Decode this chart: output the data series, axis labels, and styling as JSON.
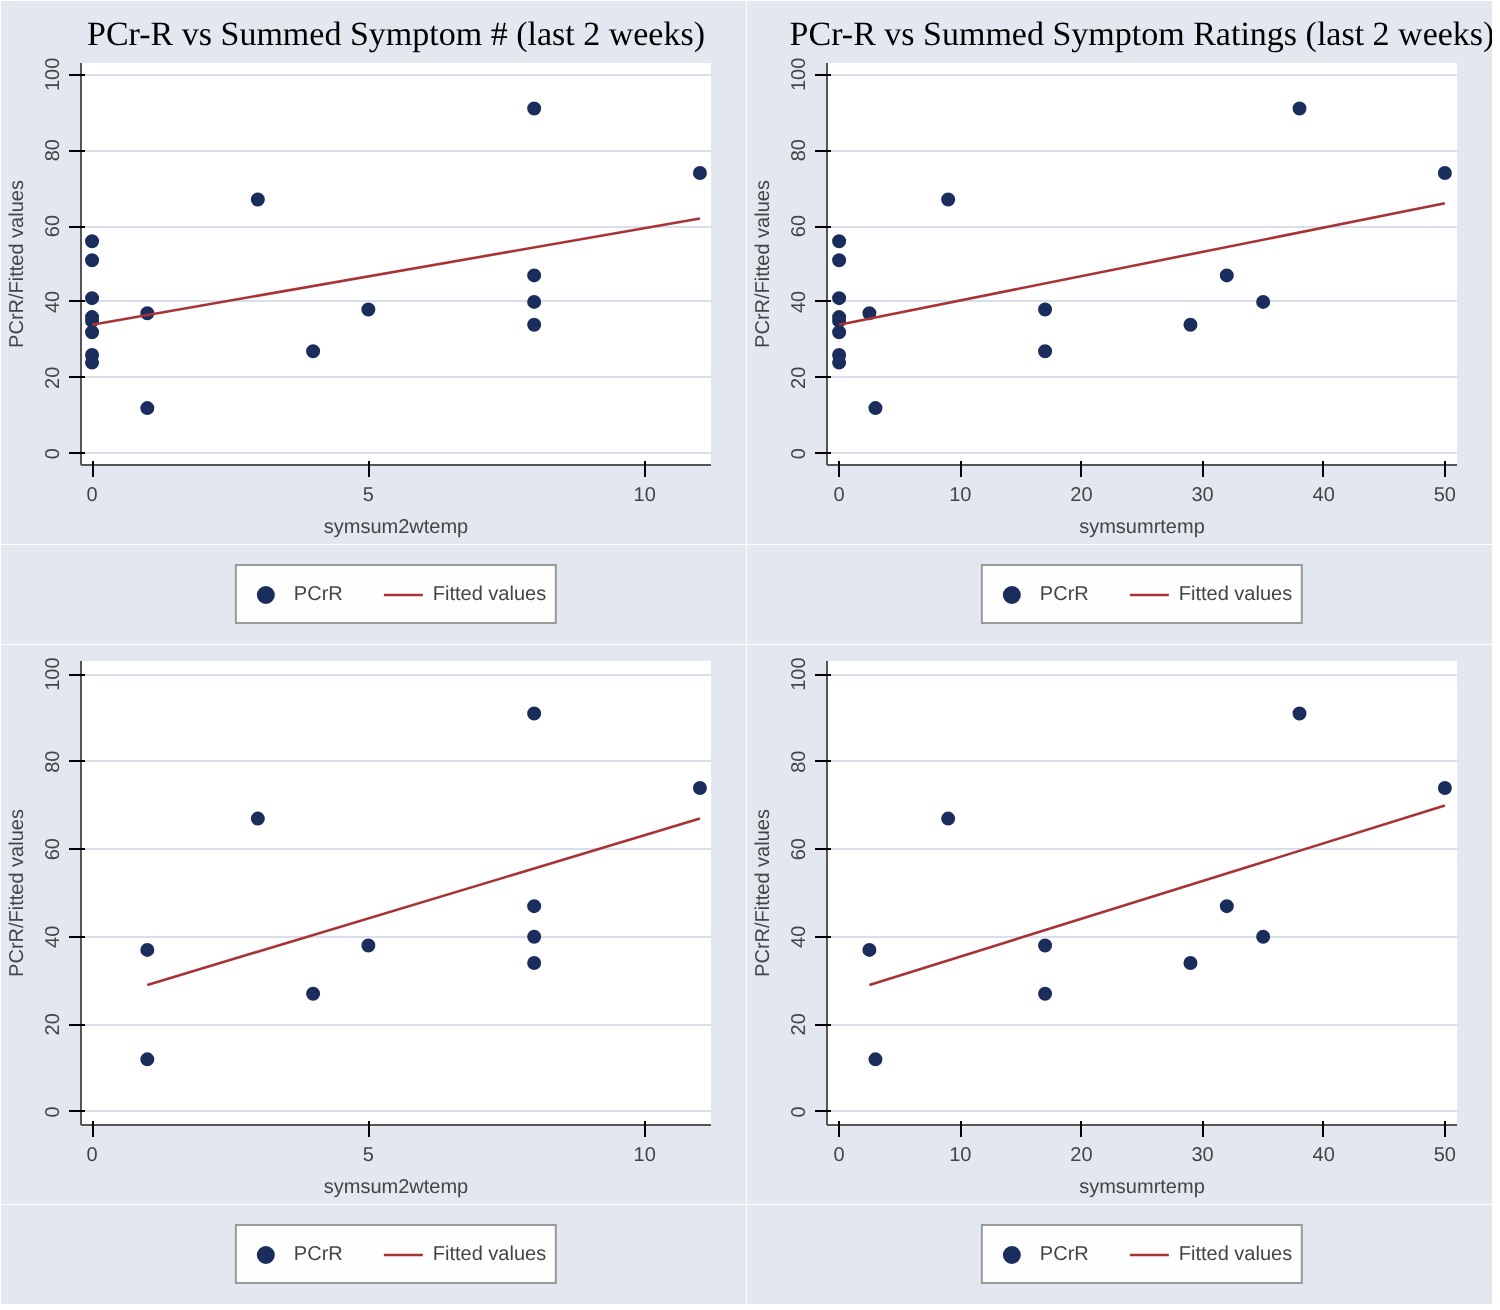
{
  "chart_data": [
    {
      "type": "scatter",
      "title": "PCr-R vs Summed Symptom # (last 2 weeks)",
      "xlabel": "symsum2wtemp",
      "ylabel": "PCrR/Fitted values",
      "xlim": [
        -0.2,
        11.2
      ],
      "ylim": [
        -3,
        103
      ],
      "xticks": [
        0,
        5,
        10
      ],
      "yticks": [
        0,
        20,
        40,
        60,
        80,
        100
      ],
      "grid": "y",
      "legend": "bottom",
      "series": [
        {
          "name": "PCrR",
          "marker": "circle",
          "color": "#1b2d5c",
          "x": [
            0,
            0,
            0,
            0,
            0,
            0,
            0,
            0,
            1,
            1,
            3,
            4,
            5,
            8,
            8,
            8,
            8,
            11
          ],
          "values": [
            56,
            51,
            41,
            36,
            35,
            32,
            26,
            24,
            37,
            12,
            67,
            27,
            38,
            91,
            47,
            40,
            34,
            74
          ]
        },
        {
          "name": "Fitted values",
          "type": "line",
          "color": "#a83236",
          "x": [
            0,
            11
          ],
          "values": [
            34,
            62
          ]
        }
      ]
    },
    {
      "type": "scatter",
      "title": "PCr-R vs Summed Symptom Ratings (last 2 weeks)",
      "xlabel": "symsumrtemp",
      "ylabel": "PCrR/Fitted values",
      "xlim": [
        -1,
        51
      ],
      "ylim": [
        -3,
        103
      ],
      "xticks": [
        0,
        10,
        20,
        30,
        40,
        50
      ],
      "yticks": [
        0,
        20,
        40,
        60,
        80,
        100
      ],
      "grid": "y",
      "legend": "bottom",
      "series": [
        {
          "name": "PCrR",
          "marker": "circle",
          "color": "#1b2d5c",
          "x": [
            0,
            0,
            0,
            0,
            0,
            0,
            0,
            0,
            2.5,
            3,
            9,
            17,
            17,
            29,
            32,
            35,
            38,
            50
          ],
          "values": [
            56,
            51,
            41,
            36,
            35,
            32,
            26,
            24,
            37,
            12,
            67,
            27,
            38,
            34,
            47,
            40,
            91,
            74
          ]
        },
        {
          "name": "Fitted values",
          "type": "line",
          "color": "#a83236",
          "x": [
            0,
            50
          ],
          "values": [
            34,
            66
          ]
        }
      ]
    },
    {
      "type": "scatter",
      "xlabel": "symsum2wtemp",
      "ylabel": "PCrR/Fitted values",
      "xlim": [
        -0.2,
        11.2
      ],
      "ylim": [
        -3,
        103
      ],
      "xticks": [
        0,
        5,
        10
      ],
      "yticks": [
        0,
        20,
        40,
        60,
        80,
        100
      ],
      "grid": "y",
      "legend": "bottom",
      "series": [
        {
          "name": "PCrR",
          "marker": "circle",
          "color": "#1b2d5c",
          "x": [
            1,
            1,
            3,
            4,
            5,
            8,
            8,
            8,
            8,
            11
          ],
          "values": [
            37,
            12,
            67,
            27,
            38,
            91,
            47,
            40,
            34,
            74
          ]
        },
        {
          "name": "Fitted values",
          "type": "line",
          "color": "#a83236",
          "x": [
            1,
            11
          ],
          "values": [
            29,
            67
          ]
        }
      ]
    },
    {
      "type": "scatter",
      "xlabel": "symsumrtemp",
      "ylabel": "PCrR/Fitted values",
      "xlim": [
        -1,
        51
      ],
      "ylim": [
        -3,
        103
      ],
      "xticks": [
        0,
        10,
        20,
        30,
        40,
        50
      ],
      "yticks": [
        0,
        20,
        40,
        60,
        80,
        100
      ],
      "grid": "y",
      "legend": "bottom",
      "series": [
        {
          "name": "PCrR",
          "marker": "circle",
          "color": "#1b2d5c",
          "x": [
            2.5,
            3,
            9,
            17,
            17,
            29,
            32,
            35,
            38,
            50
          ],
          "values": [
            37,
            12,
            67,
            27,
            38,
            34,
            47,
            40,
            91,
            74
          ]
        },
        {
          "name": "Fitted values",
          "type": "line",
          "color": "#a83236",
          "x": [
            2.5,
            50
          ],
          "values": [
            29,
            70
          ]
        }
      ]
    }
  ]
}
